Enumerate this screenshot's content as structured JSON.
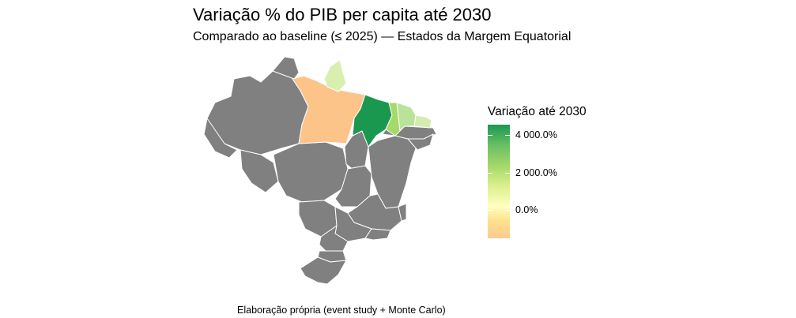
{
  "title": "Variação % do PIB per capita até 2030",
  "subtitle": "Comparado ao baseline (≤ 2025) — Estados da Margem Equatorial",
  "legend": {
    "title": "Variação até 2030",
    "labels": [
      "4 000.0%",
      "2 000.0%",
      "0.0%"
    ]
  },
  "caption": "Elaboração própria (event study + Monte Carlo)",
  "colors": {
    "no_data": "#808080",
    "para": "#fdc48a",
    "amapa": "#d9efb0",
    "maranhao": "#1a9850",
    "piaui": "#a6d96a",
    "ceara": "#b9e29a",
    "rio_grande_do_norte": "#d4ecb0",
    "border": "#ffffff"
  }
}
